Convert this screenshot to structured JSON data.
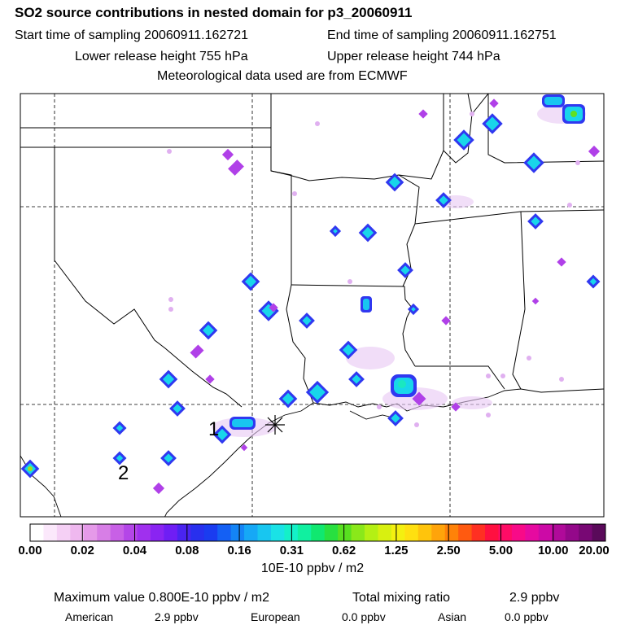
{
  "header": {
    "title": "SO2 source contributions in nested domain for p3_20060911",
    "start_label": "Start time of sampling 20060911.162721",
    "end_label": "End time of sampling 20060911.162751",
    "lower_label": "Lower release height  755 hPa",
    "upper_label": "Upper release height  744 hPa",
    "met_label": "Meteorological data used are from ECMWF"
  },
  "map": {
    "site_labels": [
      "1",
      "2"
    ],
    "receptor_marker": "asterisk-marker"
  },
  "colorbar": {
    "ticks": [
      "0.00",
      "0.02",
      "0.04",
      "0.08",
      "0.16",
      "0.31",
      "0.62",
      "1.25",
      "2.50",
      "5.00",
      "10.00",
      "20.00"
    ],
    "units": "10E-10 ppbv / m2",
    "colors": [
      "#ffffff",
      "#fbe8fb",
      "#f5d0f5",
      "#efb8ef",
      "#e59ae9",
      "#d77ee6",
      "#c860e6",
      "#b446e8",
      "#a030ee",
      "#8a24f2",
      "#6f1ef4",
      "#4a24f0",
      "#2830ee",
      "#1a3cf0",
      "#1460f4",
      "#1484f6",
      "#16a8f6",
      "#18c6f0",
      "#1ae2e6",
      "#14f0c8",
      "#10f0a0",
      "#10e870",
      "#28e040",
      "#58e020",
      "#8ae81a",
      "#b4f014",
      "#d8f010",
      "#f4f010",
      "#ffe010",
      "#ffc40c",
      "#ffa40a",
      "#ff8208",
      "#ff5a10",
      "#ff3022",
      "#ff1040",
      "#ff0c66",
      "#f80a88",
      "#e60aa0",
      "#cc0aa6",
      "#b00a9a",
      "#94088a",
      "#780874",
      "#5a0a5a"
    ]
  },
  "footer": {
    "max_label": "Maximum value  0.800E-10 ppbv / m2",
    "total_label": "Total mixing ratio",
    "total_value": "2.9 ppbv",
    "american_label": "American",
    "american_value": "2.9 ppbv",
    "european_label": "European",
    "european_value": "0.0 ppbv",
    "asian_label": "Asian",
    "asian_value": "0.0 ppbv"
  }
}
